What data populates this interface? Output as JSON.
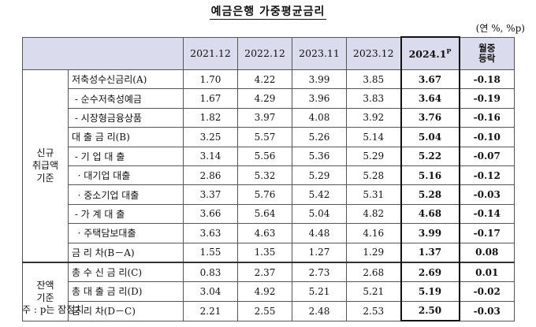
{
  "title": "예금은행 가중평균금리",
  "unit": "(연 %, %p)",
  "columns": {
    "y1": "2021.12",
    "y2": "2022.12",
    "y3": "2023.11",
    "y4": "2023.12",
    "p": "2024.1",
    "p_sup": "P",
    "chg": "월중\n등락"
  },
  "groups": {
    "new": "신규\n취급액\n기준",
    "bal": "잔액\n기준"
  },
  "rows": [
    {
      "label": "저축성수신금리(A)",
      "v": [
        "1.70",
        "4.22",
        "3.99",
        "3.85"
      ],
      "p": "3.67",
      "chg": "-0.18"
    },
    {
      "label": " - 순수저축성예금",
      "v": [
        "1.67",
        "4.29",
        "3.96",
        "3.83"
      ],
      "p": "3.64",
      "chg": "-0.19"
    },
    {
      "label": " - 시장형금융상품",
      "v": [
        "1.82",
        "3.97",
        "4.08",
        "3.92"
      ],
      "p": "3.76",
      "chg": "-0.16"
    },
    {
      "label": "대 출 금 리(B)",
      "v": [
        "3.25",
        "5.57",
        "5.26",
        "5.14"
      ],
      "p": "5.04",
      "chg": "-0.10"
    },
    {
      "label": " - 기 업 대 출",
      "v": [
        "3.14",
        "5.56",
        "5.36",
        "5.29"
      ],
      "p": "5.22",
      "chg": "-0.07"
    },
    {
      "label": "  · 대기업 대출",
      "v": [
        "2.86",
        "5.32",
        "5.29",
        "5.28"
      ],
      "p": "5.16",
      "chg": "-0.12"
    },
    {
      "label": "  · 중소기업 대출",
      "v": [
        "3.37",
        "5.76",
        "5.42",
        "5.31"
      ],
      "p": "5.28",
      "chg": "-0.03"
    },
    {
      "label": " - 가 계 대 출",
      "v": [
        "3.66",
        "5.64",
        "5.04",
        "4.82"
      ],
      "p": "4.68",
      "chg": "-0.14"
    },
    {
      "label": "  · 주택담보대출",
      "v": [
        "3.63",
        "4.63",
        "4.48",
        "4.16"
      ],
      "p": "3.99",
      "chg": "-0.17"
    },
    {
      "label": "금 리 차(B－A)",
      "v": [
        "1.55",
        "1.35",
        "1.27",
        "1.29"
      ],
      "p": "1.37",
      "chg": "0.08"
    },
    {
      "label": "총 수 신 금 리(C)",
      "v": [
        "0.83",
        "2.37",
        "2.73",
        "2.68"
      ],
      "p": "2.69",
      "chg": "0.01"
    },
    {
      "label": "총 대 출 금 리(D)",
      "v": [
        "3.04",
        "4.92",
        "5.21",
        "5.21"
      ],
      "p": "5.19",
      "chg": "-0.02"
    },
    {
      "label": "금 리 차(D－C)",
      "v": [
        "2.21",
        "2.55",
        "2.48",
        "2.53"
      ],
      "p": "2.50",
      "chg": "-0.03"
    }
  ],
  "note": "주 : p는 잠정치"
}
